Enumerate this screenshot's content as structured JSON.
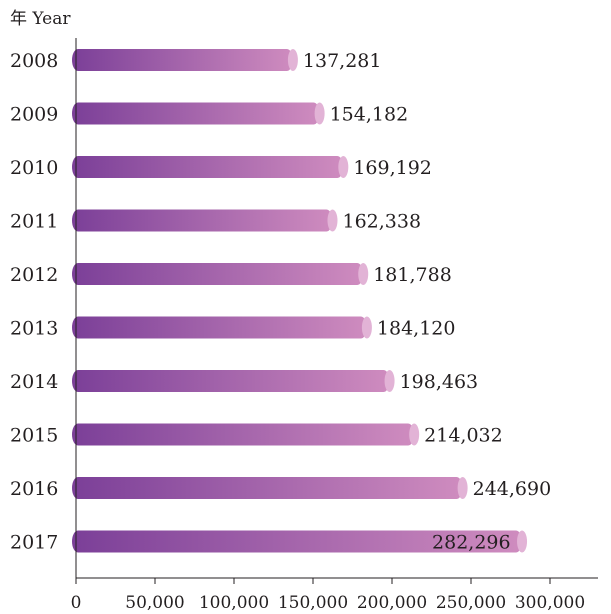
{
  "chart_data": {
    "type": "bar",
    "orientation": "horizontal",
    "ylabel": "年 Year",
    "categories": [
      "2008",
      "2009",
      "2010",
      "2011",
      "2012",
      "2013",
      "2014",
      "2015",
      "2016",
      "2017"
    ],
    "values": [
      137281,
      154182,
      169192,
      162338,
      181788,
      184120,
      198463,
      214032,
      244690,
      282296
    ],
    "value_labels": [
      "137,281",
      "154,182",
      "169,192",
      "162,338",
      "181,788",
      "184,120",
      "198,463",
      "214,032",
      "244,690",
      "282,296"
    ],
    "xlim": [
      0,
      320000
    ],
    "xticks": [
      0,
      50000,
      100000,
      150000,
      200000,
      250000,
      300000
    ],
    "xtick_labels": [
      "0",
      "50,000",
      "100,000",
      "150,000",
      "200,000",
      "250,000",
      "300,000"
    ],
    "grid": false,
    "colors": {
      "bar_start": "#7b3f98",
      "bar_end": "#cf8cbf",
      "bar_cap": "#e2b3d6",
      "axis": "#231f20"
    }
  }
}
